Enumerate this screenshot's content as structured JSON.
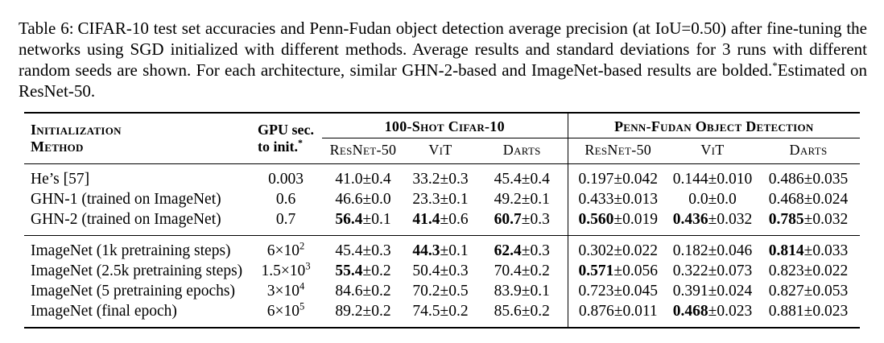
{
  "caption": {
    "label": "Table 6:",
    "body": "CIFAR-10 test set accuracies and Penn-Fudan object detection average precision (at IoU=0.50) after fine-tuning the networks using SGD initialized with different methods.  Average results and standard deviations for 3 runs with different random seeds are shown. For each architecture, similar GHN-2-based and ImageNet-based results are bolded.",
    "footnote_marker": "*",
    "footnote_text": "Estimated on ResNet-50."
  },
  "table": {
    "plusminus": "±",
    "header": {
      "method_line1": "Initialization",
      "method_line2": "Method",
      "gpu_line1": "GPU sec.",
      "gpu_line2": "to init.",
      "gpu_marker": "*",
      "group1": "100-Shot Cifar-10",
      "group2": "Penn-Fudan Object Detection",
      "subcols": [
        "ResNet-50",
        "ViT",
        "Darts",
        "ResNet-50",
        "ViT",
        "Darts"
      ]
    },
    "groups": [
      {
        "rows": [
          {
            "method": "He’s [57]",
            "gpu": {
              "base": "0.003",
              "exp": ""
            },
            "values": [
              {
                "mean": "41.0",
                "std": "0.4",
                "bold": false
              },
              {
                "mean": "33.2",
                "std": "0.3",
                "bold": false
              },
              {
                "mean": "45.4",
                "std": "0.4",
                "bold": false
              },
              {
                "mean": "0.197",
                "std": "0.042",
                "bold": false
              },
              {
                "mean": "0.144",
                "std": "0.010",
                "bold": false
              },
              {
                "mean": "0.486",
                "std": "0.035",
                "bold": false
              }
            ]
          },
          {
            "method": "GHN-1 (trained on ImageNet)",
            "gpu": {
              "base": "0.6",
              "exp": ""
            },
            "values": [
              {
                "mean": "46.6",
                "std": "0.0",
                "bold": false
              },
              {
                "mean": "23.3",
                "std": "0.1",
                "bold": false
              },
              {
                "mean": "49.2",
                "std": "0.1",
                "bold": false
              },
              {
                "mean": "0.433",
                "std": "0.013",
                "bold": false
              },
              {
                "mean": "0.0",
                "std": "0.0",
                "bold": false
              },
              {
                "mean": "0.468",
                "std": "0.024",
                "bold": false
              }
            ]
          },
          {
            "method": "GHN-2 (trained on ImageNet)",
            "gpu": {
              "base": "0.7",
              "exp": ""
            },
            "values": [
              {
                "mean": "56.4",
                "std": "0.1",
                "bold": true
              },
              {
                "mean": "41.4",
                "std": "0.6",
                "bold": true
              },
              {
                "mean": "60.7",
                "std": "0.3",
                "bold": true
              },
              {
                "mean": "0.560",
                "std": "0.019",
                "bold": true
              },
              {
                "mean": "0.436",
                "std": "0.032",
                "bold": true
              },
              {
                "mean": "0.785",
                "std": "0.032",
                "bold": true
              }
            ]
          }
        ]
      },
      {
        "rows": [
          {
            "method": "ImageNet (1k pretraining steps)",
            "gpu": {
              "base": "6×10",
              "exp": "2"
            },
            "values": [
              {
                "mean": "45.4",
                "std": "0.3",
                "bold": false
              },
              {
                "mean": "44.3",
                "std": "0.1",
                "bold": true
              },
              {
                "mean": "62.4",
                "std": "0.3",
                "bold": true
              },
              {
                "mean": "0.302",
                "std": "0.022",
                "bold": false
              },
              {
                "mean": "0.182",
                "std": "0.046",
                "bold": false
              },
              {
                "mean": "0.814",
                "std": "0.033",
                "bold": true
              }
            ]
          },
          {
            "method": "ImageNet (2.5k pretraining steps)",
            "gpu": {
              "base": "1.5×10",
              "exp": "3"
            },
            "values": [
              {
                "mean": "55.4",
                "std": "0.2",
                "bold": true
              },
              {
                "mean": "50.4",
                "std": "0.3",
                "bold": false
              },
              {
                "mean": "70.4",
                "std": "0.2",
                "bold": false
              },
              {
                "mean": "0.571",
                "std": "0.056",
                "bold": true
              },
              {
                "mean": "0.322",
                "std": "0.073",
                "bold": false
              },
              {
                "mean": "0.823",
                "std": "0.022",
                "bold": false
              }
            ]
          },
          {
            "method": "ImageNet (5 pretraining epochs)",
            "gpu": {
              "base": "3×10",
              "exp": "4"
            },
            "values": [
              {
                "mean": "84.6",
                "std": "0.2",
                "bold": false
              },
              {
                "mean": "70.2",
                "std": "0.5",
                "bold": false
              },
              {
                "mean": "83.9",
                "std": "0.1",
                "bold": false
              },
              {
                "mean": "0.723",
                "std": "0.045",
                "bold": false
              },
              {
                "mean": "0.391",
                "std": "0.024",
                "bold": false
              },
              {
                "mean": "0.827",
                "std": "0.053",
                "bold": false
              }
            ]
          },
          {
            "method": "ImageNet (final epoch)",
            "gpu": {
              "base": "6×10",
              "exp": "5"
            },
            "values": [
              {
                "mean": "89.2",
                "std": "0.2",
                "bold": false
              },
              {
                "mean": "74.5",
                "std": "0.2",
                "bold": false
              },
              {
                "mean": "85.6",
                "std": "0.2",
                "bold": false
              },
              {
                "mean": "0.876",
                "std": "0.011",
                "bold": false
              },
              {
                "mean": "0.468",
                "std": "0.023",
                "bold": true
              },
              {
                "mean": "0.881",
                "std": "0.023",
                "bold": false
              }
            ]
          }
        ]
      }
    ]
  }
}
